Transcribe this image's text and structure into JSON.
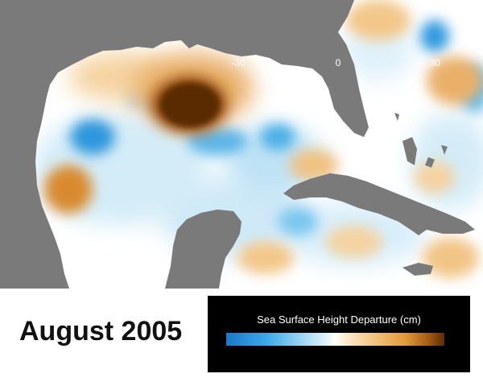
{
  "date_label": "August 2005",
  "legend": {
    "title": "Sea Surface Height Departure (cm)",
    "ticks": [
      "-30",
      "0",
      "30"
    ],
    "range": [
      -30,
      30
    ],
    "colors": {
      "negative": "#1a78c8",
      "neutral": "#ffffff",
      "positive": "#e39a3a",
      "extreme_positive": "#5a2c06",
      "land": "#7a7a7a"
    }
  }
}
